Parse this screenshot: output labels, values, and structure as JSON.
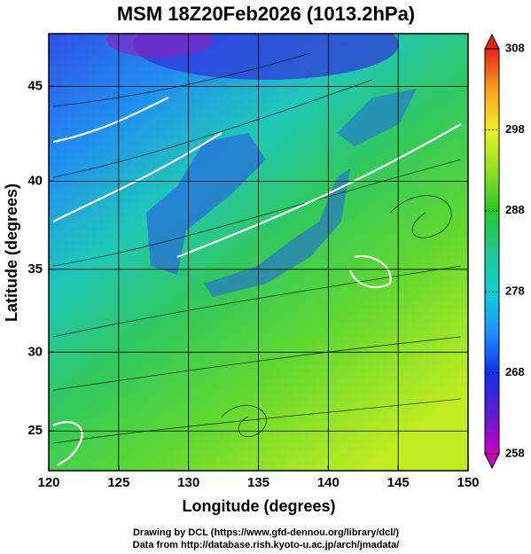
{
  "chart_data": {
    "type": "map",
    "projection": "mercator",
    "title": "MSM 18Z20Feb2026 (1013.2hPa)",
    "xlabel": "Longitude (degrees)",
    "ylabel": "Latitude  (degrees)",
    "xlim": [
      120,
      150
    ],
    "xticks": [
      120,
      125,
      130,
      135,
      140,
      145,
      150
    ],
    "ylim": [
      22.4,
      47.6
    ],
    "yticks": [
      25,
      30,
      35,
      40,
      45
    ],
    "grid": true,
    "colorbar": {
      "lim": [
        258,
        308
      ],
      "ticks": [
        258,
        268,
        278,
        288,
        298,
        308
      ],
      "colors": [
        "#d000c0",
        "#5a1fd0",
        "#1030f0",
        "#1e90ff",
        "#10d0d0",
        "#20c890",
        "#28c828",
        "#90e020",
        "#f0f020",
        "#f8a020",
        "#e82018"
      ]
    },
    "footer": [
      "Drawing by DCL (https://www.gfd-dennou.org/library/dcl/)",
      "Data from http://database.rish.kyoto-u.ac.jp/arch/jmadata/"
    ]
  }
}
